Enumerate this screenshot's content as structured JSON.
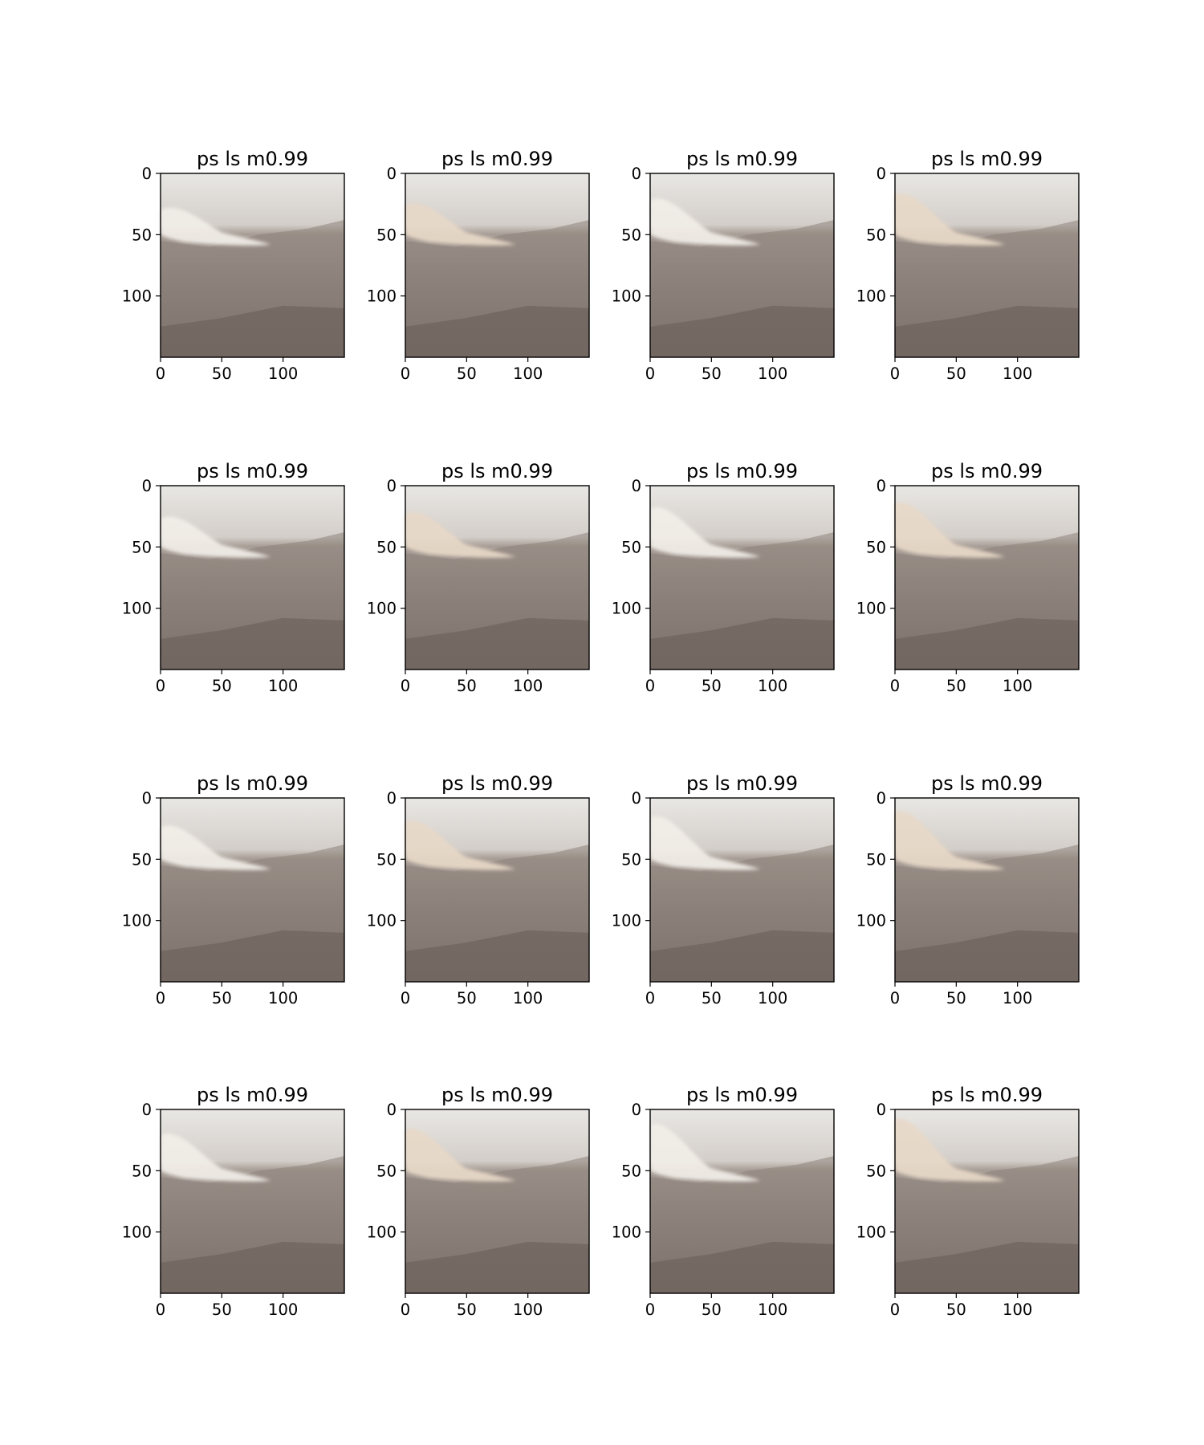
{
  "chart_data": {
    "type": "image-grid",
    "rows": 4,
    "cols": 4,
    "panel_title": "ps ls m0.99",
    "image_size": [
      150,
      150
    ],
    "xlim": [
      0,
      150
    ],
    "ylim": [
      150,
      0
    ],
    "xticks": [
      0,
      50,
      100
    ],
    "yticks": [
      0,
      50,
      100
    ],
    "xtick_labels": [
      "0",
      "50",
      "100"
    ],
    "ytick_labels": [
      "0",
      "50",
      "100"
    ],
    "grid": false,
    "panels": [
      {
        "title": "ps ls m0.99",
        "smoke_tip_x": 90,
        "smoke_tip_y": 58
      },
      {
        "title": "ps ls m0.99",
        "smoke_tip_x": 90,
        "smoke_tip_y": 58
      },
      {
        "title": "ps ls m0.99",
        "smoke_tip_x": 90,
        "smoke_tip_y": 58
      },
      {
        "title": "ps ls m0.99",
        "smoke_tip_x": 90,
        "smoke_tip_y": 58
      },
      {
        "title": "ps ls m0.99",
        "smoke_tip_x": 90,
        "smoke_tip_y": 58
      },
      {
        "title": "ps ls m0.99",
        "smoke_tip_x": 90,
        "smoke_tip_y": 58
      },
      {
        "title": "ps ls m0.99",
        "smoke_tip_x": 90,
        "smoke_tip_y": 58
      },
      {
        "title": "ps ls m0.99",
        "smoke_tip_x": 90,
        "smoke_tip_y": 58
      },
      {
        "title": "ps ls m0.99",
        "smoke_tip_x": 90,
        "smoke_tip_y": 58
      },
      {
        "title": "ps ls m0.99",
        "smoke_tip_x": 90,
        "smoke_tip_y": 58
      },
      {
        "title": "ps ls m0.99",
        "smoke_tip_x": 90,
        "smoke_tip_y": 58
      },
      {
        "title": "ps ls m0.99",
        "smoke_tip_x": 90,
        "smoke_tip_y": 58
      },
      {
        "title": "ps ls m0.99",
        "smoke_tip_x": 90,
        "smoke_tip_y": 58
      },
      {
        "title": "ps ls m0.99",
        "smoke_tip_x": 90,
        "smoke_tip_y": 58
      },
      {
        "title": "ps ls m0.99",
        "smoke_tip_x": 90,
        "smoke_tip_y": 58
      },
      {
        "title": "ps ls m0.99",
        "smoke_tip_x": 90,
        "smoke_tip_y": 58
      }
    ],
    "colors": {
      "sky": "#e6e3de",
      "haze": "#c9c3bd",
      "ridge": "#8c817a",
      "ground": "#6e635d",
      "smoke": "#f2eee8",
      "smoke_warm": "#e8d9c8",
      "axis": "#000000"
    }
  }
}
